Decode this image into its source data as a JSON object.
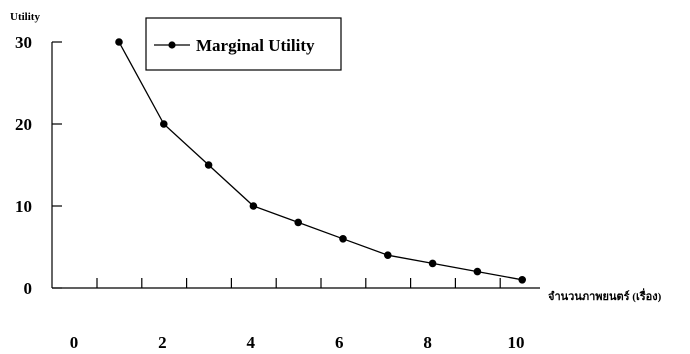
{
  "chart_data": {
    "type": "line",
    "ylabel": "Utility",
    "xlabel": "จำนวนภาพยนตร์ (เรื่อง)",
    "xlim": [
      0,
      10
    ],
    "ylim": [
      0,
      30
    ],
    "yticks": [
      0,
      10,
      20,
      30
    ],
    "xticks": [
      0,
      2,
      4,
      6,
      8,
      10
    ],
    "x_minor_tick_count": 10,
    "legend_position": "top-center",
    "grid": false,
    "series": [
      {
        "name": "Marginal Utility",
        "x": [
          1,
          2,
          3,
          4,
          5,
          6,
          7,
          8,
          9,
          10
        ],
        "values": [
          30,
          20,
          15,
          10,
          8,
          6,
          4,
          3,
          2,
          1
        ],
        "color": "#000000",
        "marker": "circle"
      }
    ]
  }
}
